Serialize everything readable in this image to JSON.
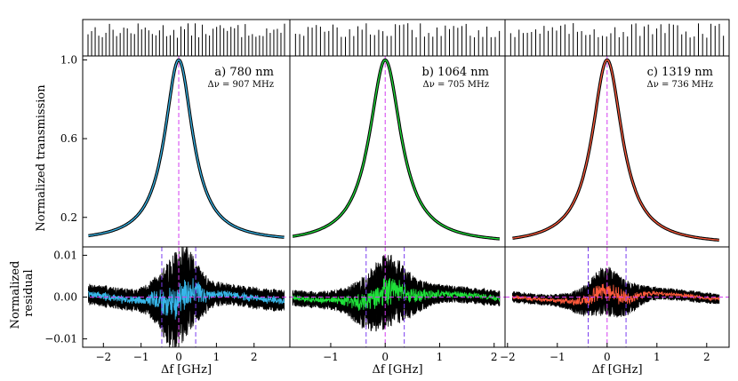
{
  "figure": {
    "ylabel_top": "Normalized transmission",
    "ylabel_bottom": "Normalized residual",
    "xlabel": "Δf [GHz]"
  },
  "chart_data": [
    {
      "type": "line",
      "panel": "a",
      "title": "a) 780 nm",
      "annotation": "Δν = 907 MHz",
      "line_color": "#37b5e8",
      "xlabel": "Δf [GHz]",
      "ylabel": "Normalized transmission",
      "xlim": [
        -2.55,
        2.95
      ],
      "ylim": [
        0.05,
        1.02
      ],
      "yticks": [
        0.2,
        0.6,
        1.0
      ],
      "xticks": [
        -2,
        -1,
        0,
        1,
        2
      ],
      "x_range": [
        -2.4,
        2.8
      ],
      "center": 0.0,
      "linewidth_ghz": 0.907,
      "baseline": 0.075,
      "residual_ylim": [
        -0.012,
        0.012
      ],
      "residual_yticks": [
        -0.01,
        0.0,
        0.01
      ],
      "residual_markers": [
        -0.45,
        0.45
      ],
      "residual_envelope": 0.004,
      "comb_lines": 56
    },
    {
      "type": "line",
      "panel": "b",
      "title": "b) 1064 nm",
      "annotation": "Δν = 705 MHz",
      "line_color": "#1fe03a",
      "xlabel": "Δf [GHz]",
      "ylim": [
        0.05,
        1.02
      ],
      "xlim": [
        -1.75,
        2.2
      ],
      "xticks": [
        -1,
        0,
        1,
        2
      ],
      "x_range": [
        -1.7,
        2.1
      ],
      "center": 0.0,
      "linewidth_ghz": 0.705,
      "baseline": 0.065,
      "residual_ylim": [
        -0.012,
        0.012
      ],
      "residual_markers": [
        -0.35,
        0.35
      ],
      "residual_envelope": 0.003,
      "comb_lines": 50
    },
    {
      "type": "line",
      "panel": "c",
      "title": "c) 1319 nm",
      "annotation": "Δν = 736 MHz",
      "line_color": "#ff5a3c",
      "xlabel": "Δf [GHz]",
      "ylim": [
        0.05,
        1.02
      ],
      "xlim": [
        -2.05,
        2.45
      ],
      "xticks": [
        -2,
        -1,
        0,
        1,
        2
      ],
      "x_range": [
        -1.9,
        2.25
      ],
      "center": 0.0,
      "linewidth_ghz": 0.736,
      "baseline": 0.06,
      "residual_ylim": [
        -0.012,
        0.012
      ],
      "residual_markers": [
        -0.38,
        0.38
      ],
      "residual_envelope": 0.002,
      "comb_lines": 52
    }
  ]
}
